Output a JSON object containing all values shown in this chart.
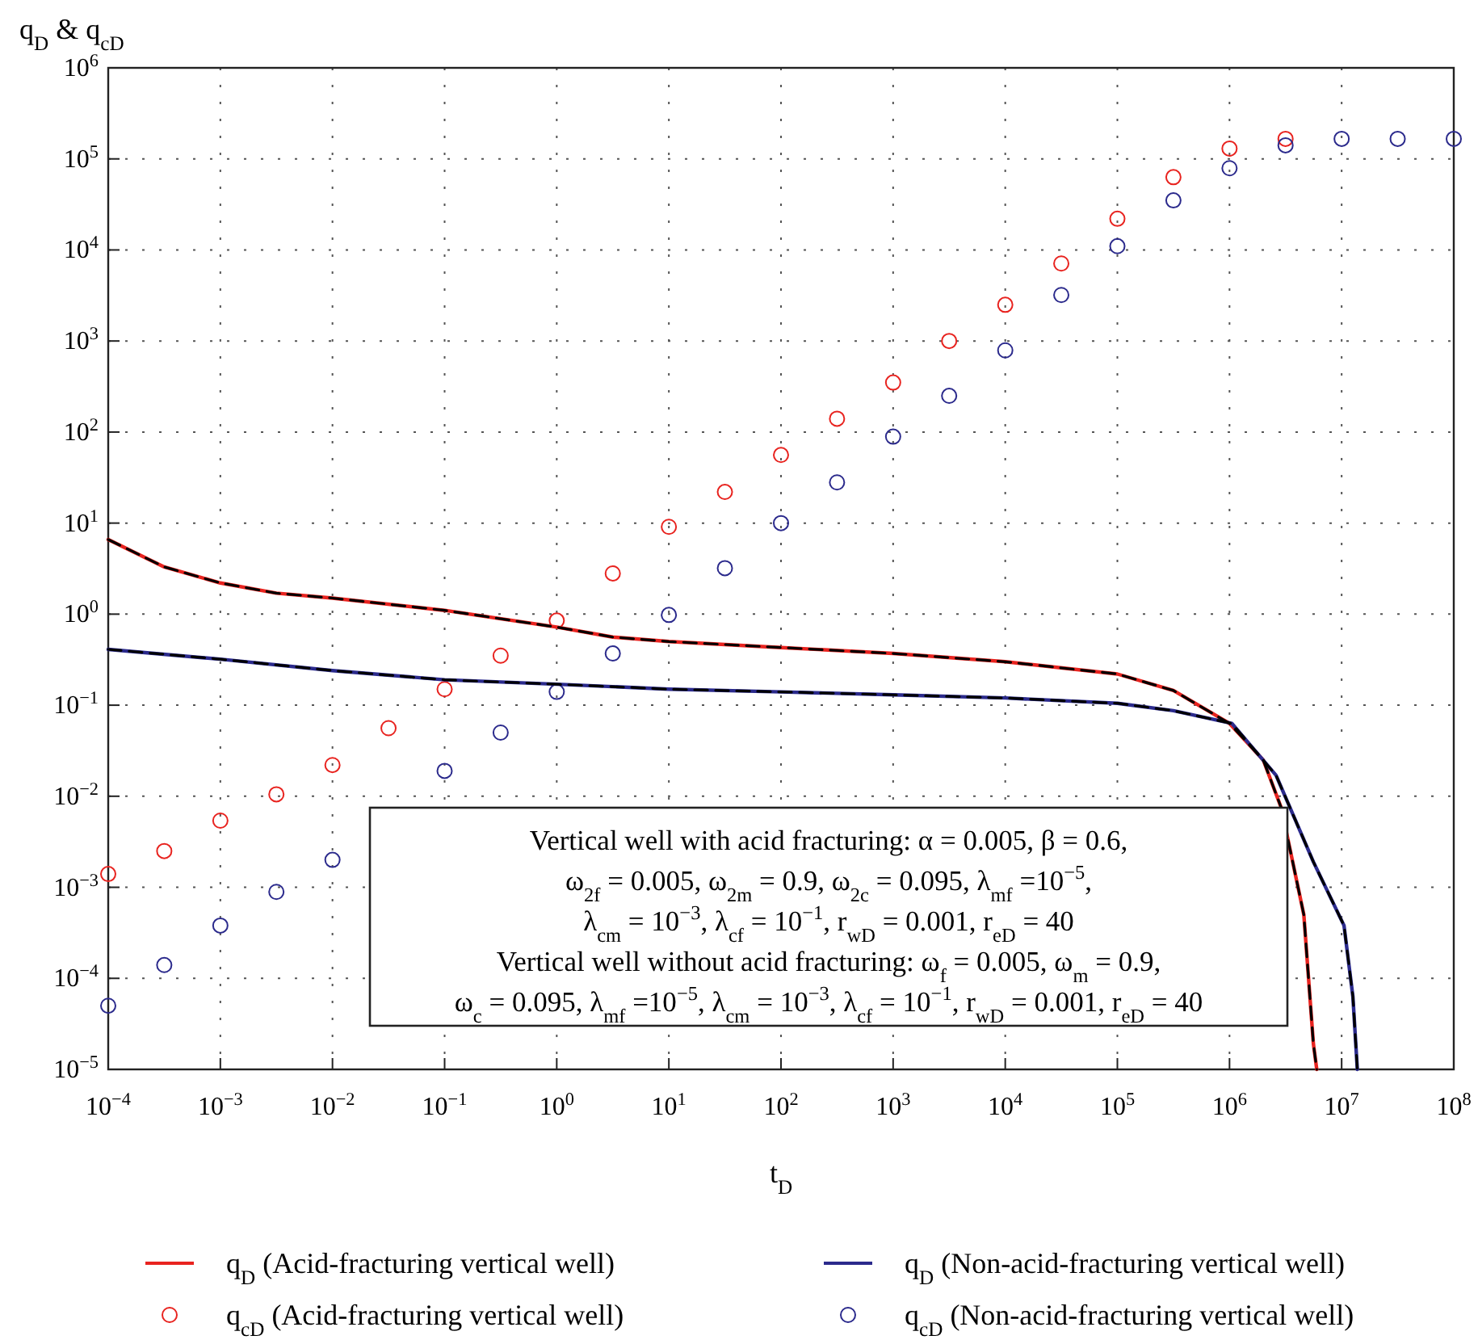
{
  "chart_data": {
    "type": "line",
    "xlabel": "t$_{D}$",
    "ylabel": "q$_{D}$ & q$_{cD}$",
    "log": "xy",
    "xlim": [
      0.0001,
      100000000
    ],
    "ylim": [
      1e-05,
      1000000
    ],
    "xticks": [
      {
        "value": 0.0001,
        "label": "10$^{−4}$"
      },
      {
        "value": 0.001,
        "label": "10$^{−3}$"
      },
      {
        "value": 0.01,
        "label": "10$^{−2}$"
      },
      {
        "value": 0.1,
        "label": "10$^{−1}$"
      },
      {
        "value": 1,
        "label": "10$^{0}$"
      },
      {
        "value": 10,
        "label": "10$^{1}$"
      },
      {
        "value": 100,
        "label": "10$^{2}$"
      },
      {
        "value": 1000,
        "label": "10$^{3}$"
      },
      {
        "value": 10000,
        "label": "10$^{4}$"
      },
      {
        "value": 100000,
        "label": "10$^{5}$"
      },
      {
        "value": 1000000,
        "label": "10$^{6}$"
      },
      {
        "value": 10000000,
        "label": "10$^{7}$"
      },
      {
        "value": 100000000,
        "label": "10$^{8}$"
      }
    ],
    "yticks": [
      {
        "value": 1e-05,
        "label": "10$^{−5}$"
      },
      {
        "value": 0.0001,
        "label": "10$^{−4}$"
      },
      {
        "value": 0.001,
        "label": "10$^{−3}$"
      },
      {
        "value": 0.01,
        "label": "10$^{−2}$"
      },
      {
        "value": 0.1,
        "label": "10$^{−1}$"
      },
      {
        "value": 1,
        "label": "10$^{0}$"
      },
      {
        "value": 10,
        "label": "10$^{1}$"
      },
      {
        "value": 100,
        "label": "10$^{2}$"
      },
      {
        "value": 1000,
        "label": "10$^{3}$"
      },
      {
        "value": 10000,
        "label": "10$^{4}$"
      },
      {
        "value": 100000,
        "label": "10$^{5}$"
      },
      {
        "value": 1000000,
        "label": "10$^{6}$"
      }
    ],
    "grid": true,
    "legend": "bottom",
    "annotations": [
      "Vertical well with acid fracturing: α = 0.005, β = 0.6,",
      "ω$_{2f}$ = 0.005, ω$_{2m}$ = 0.9, ω$_{2c}$ = 0.095, λ$_{mf}$ =10$^{−5}$,",
      "λ$_{cm}$ = 10$^{−3}$, λ$_{cf}$ = 10$^{−1}$, r$_{wD}$ = 0.001, r$_{eD}$ = 40",
      "Vertical well without acid fracturing: ω$_{f}$ = 0.005, ω$_{m}$ = 0.9,",
      "ω$_{c}$ = 0.095, λ$_{mf}$ =10$^{−5}$, λ$_{cm}$ = 10$^{−3}$, λ$_{cf}$ = 10$^{−1}$, r$_{wD}$ = 0.001, r$_{eD}$ = 40"
    ],
    "series": [
      {
        "name": "q$_{D}$ (Acid-fracturing vertical well)",
        "type": "line",
        "line_style": "solid",
        "color": "#e8231f",
        "x": [
          0.0001,
          0.000316,
          0.001,
          0.00316,
          0.01,
          0.1,
          1,
          3.16,
          10,
          100,
          1000,
          10000,
          100000,
          316000,
          1000000,
          2000000,
          2900000,
          4600000,
          5600000,
          6000000
        ],
        "values": [
          6.6,
          3.3,
          2.2,
          1.7,
          1.5,
          1.1,
          0.72,
          0.56,
          0.5,
          0.43,
          0.37,
          0.3,
          0.22,
          0.145,
          0.063,
          0.025,
          0.0074,
          0.0005,
          1.9e-05,
          1e-05
        ]
      },
      {
        "name": "q$_{cD}$ (Acid-fracturing vertical well)",
        "type": "scatter",
        "marker": "circle",
        "color": "#e8231f",
        "x": [
          0.0001,
          0.000316,
          0.001,
          0.00316,
          0.01,
          0.0316,
          0.1,
          0.316,
          1,
          3.16,
          10,
          31.6,
          100,
          316,
          1000,
          3160,
          10000,
          31600,
          100000,
          316000,
          1000000,
          3160000
        ],
        "values": [
          0.0014,
          0.0025,
          0.0054,
          0.0105,
          0.022,
          0.056,
          0.15,
          0.35,
          0.85,
          2.8,
          9.1,
          22,
          56,
          140,
          350,
          1000,
          2500,
          7100,
          22000,
          63000,
          130000,
          166000
        ]
      },
      {
        "name": "q$_{D}$ (Non-acid-fracturing vertical well)",
        "type": "line",
        "line_style": "solid",
        "color": "#2b2a8c",
        "x": [
          0.0001,
          0.001,
          0.01,
          0.1,
          1,
          10,
          100,
          1000,
          10000,
          100000,
          316000,
          1050000,
          2600000,
          5600000,
          10500000,
          12600000,
          13800000
        ],
        "values": [
          0.41,
          0.32,
          0.24,
          0.19,
          0.17,
          0.15,
          0.14,
          0.13,
          0.12,
          0.105,
          0.087,
          0.063,
          0.017,
          0.0019,
          0.00038,
          6.3e-05,
          1e-05
        ]
      },
      {
        "name": "q$_{cD}$ (Non-acid-fracturing vertical well)",
        "type": "scatter",
        "marker": "circle",
        "color": "#2b2a8c",
        "x": [
          0.0001,
          0.000316,
          0.001,
          0.00316,
          0.01,
          0.1,
          0.316,
          1,
          3.16,
          10,
          31.6,
          100,
          316,
          1000,
          3160,
          10000,
          31600,
          100000,
          316000,
          1000000,
          3160000,
          10000000,
          31600000,
          100000000
        ],
        "values": [
          5e-05,
          0.00014,
          0.00038,
          0.00089,
          0.002,
          0.019,
          0.05,
          0.14,
          0.37,
          0.98,
          3.2,
          10,
          28,
          89,
          250,
          790,
          3200,
          11000,
          35000,
          79000,
          141000,
          166000,
          166000,
          166000
        ]
      },
      {
        "type": "line",
        "line_style": "dashed",
        "color": "#000000",
        "x": [
          0.0001,
          0.000316,
          0.001,
          0.00316,
          0.01,
          0.1,
          1,
          3.16,
          10,
          100,
          1000,
          10000,
          100000,
          316000,
          1000000,
          2000000,
          2900000,
          4600000,
          5600000,
          6000000
        ],
        "values": [
          6.6,
          3.3,
          2.2,
          1.7,
          1.5,
          1.1,
          0.72,
          0.56,
          0.5,
          0.43,
          0.37,
          0.3,
          0.22,
          0.145,
          0.063,
          0.025,
          0.0074,
          0.0005,
          1.9e-05,
          1e-05
        ]
      },
      {
        "type": "line",
        "line_style": "dashed",
        "color": "#000000",
        "x": [
          0.0001,
          0.001,
          0.01,
          0.1,
          1,
          10,
          100,
          1000,
          10000,
          100000,
          316000,
          1050000,
          2600000,
          5600000,
          10500000,
          12600000,
          13800000
        ],
        "values": [
          0.41,
          0.32,
          0.24,
          0.19,
          0.17,
          0.15,
          0.14,
          0.13,
          0.12,
          0.105,
          0.087,
          0.063,
          0.017,
          0.0019,
          0.00038,
          6.3e-05,
          1e-05
        ]
      }
    ]
  }
}
